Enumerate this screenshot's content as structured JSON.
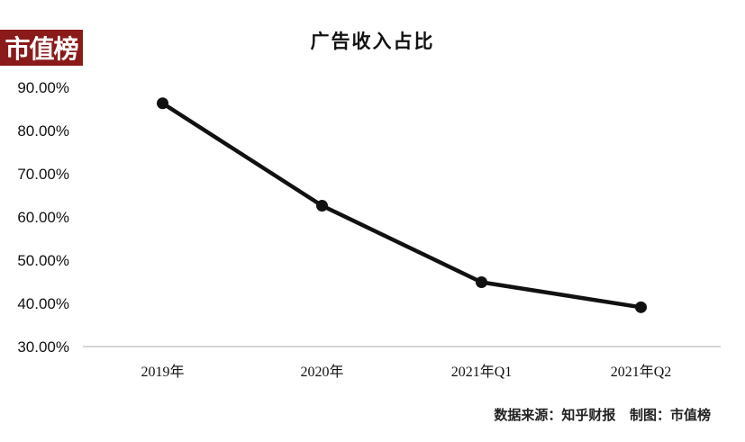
{
  "logo_text": "市值榜",
  "footer": "数据来源：知乎财报   制图：市值榜",
  "chart_data": {
    "type": "line",
    "title": "广告收入占比",
    "categories": [
      "2019年",
      "2020年",
      "2021年Q1",
      "2021年Q2"
    ],
    "values": [
      86.3,
      62.6,
      44.9,
      39.1
    ],
    "y_ticks": [
      "90.00%",
      "80.00%",
      "70.00%",
      "60.00%",
      "50.00%",
      "40.00%",
      "30.00%"
    ],
    "ylim": [
      30,
      90
    ],
    "xlabel": "",
    "ylabel": "",
    "grid": false,
    "line_color": "#111111"
  }
}
